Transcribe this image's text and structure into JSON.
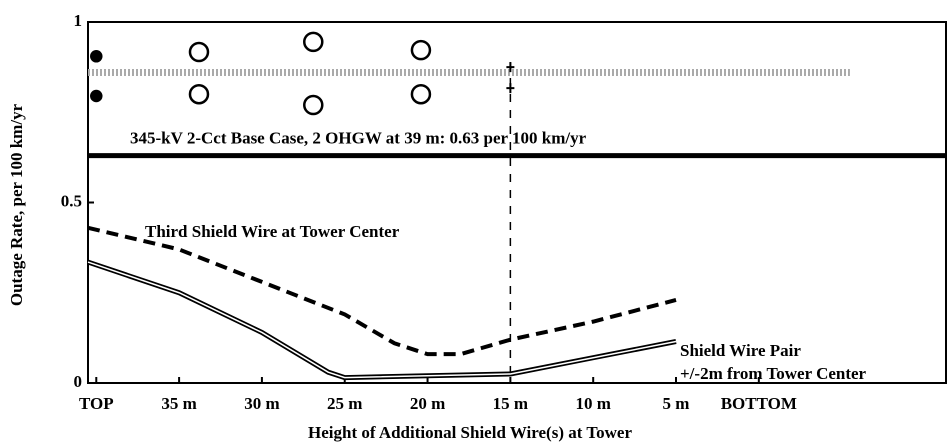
{
  "chart_data": {
    "type": "line",
    "ylabel": "Outage Rate, per 100 km/yr",
    "xlabel": "Height of Additional Shield Wire(s) at Tower",
    "xlim": [
      40.5,
      -11.3
    ],
    "ylim": [
      0,
      1
    ],
    "yticks": [
      0,
      0.5,
      1
    ],
    "xticks": [
      {
        "value": 40,
        "label": "TOP"
      },
      {
        "value": 35,
        "label": "35 m"
      },
      {
        "value": 30,
        "label": "30 m"
      },
      {
        "value": 25,
        "label": "25 m"
      },
      {
        "value": 20,
        "label": "20 m"
      },
      {
        "value": 15,
        "label": "15 m"
      },
      {
        "value": 10,
        "label": "10 m"
      },
      {
        "value": 5,
        "label": "5 m"
      },
      {
        "value": 0,
        "label": "BOTTOM"
      }
    ],
    "hline": 0.63,
    "vline": 15,
    "series": [
      {
        "name": "Third Shield Wire at Tower Center",
        "style": "dashed",
        "color": "#000000",
        "x": [
          40.5,
          35,
          30,
          25,
          22,
          20,
          18,
          15,
          10,
          5
        ],
        "values": [
          0.43,
          0.37,
          0.28,
          0.19,
          0.11,
          0.08,
          0.08,
          0.12,
          0.17,
          0.23
        ]
      },
      {
        "style": "double",
        "color": "#000000",
        "x": [
          40.5,
          35,
          30,
          26,
          25,
          15,
          10,
          5
        ],
        "values": [
          0.335,
          0.25,
          0.14,
          0.03,
          0.015,
          0.025,
          0.07,
          0.115
        ]
      },
      {
        "style": "dotted",
        "color": "#aaaaaa",
        "x": [
          40.5,
          -5.5
        ],
        "values": [
          0.86,
          0.86
        ]
      }
    ],
    "points": [
      {
        "marker": "filled",
        "x": [
          40,
          40
        ],
        "values": [
          0.905,
          0.795
        ]
      },
      {
        "marker": "open",
        "x": [
          33.8,
          26.9,
          20.4,
          33.8,
          26.9,
          20.4
        ],
        "values": [
          0.917,
          0.945,
          0.922,
          0.8,
          0.77,
          0.8
        ]
      },
      {
        "marker": "plus",
        "x": [
          15,
          15
        ],
        "values": [
          0.875,
          0.817
        ]
      }
    ],
    "annotations": [
      "345-kV 2-Cct Base Case, 2 OHGW at 39 m: 0.63 per 100 km/yr",
      "Third Shield Wire at Tower Center",
      "Shield Wire Pair",
      "+/-2m from Tower Center"
    ]
  }
}
